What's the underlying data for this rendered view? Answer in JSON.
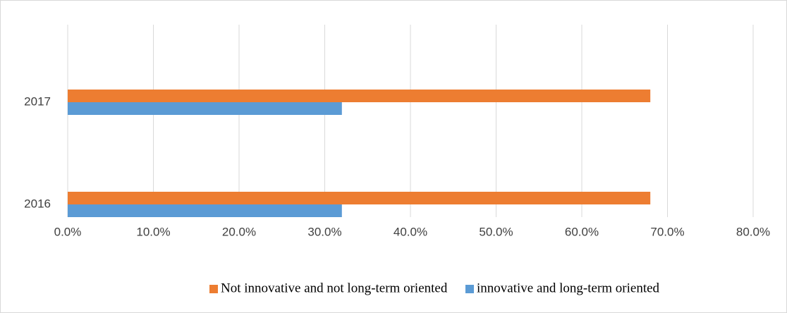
{
  "chart_data": {
    "type": "hbar",
    "categories": [
      "2016",
      "2017"
    ],
    "series": [
      {
        "name": "Not innovative and not long-term oriented",
        "color": "#ed7d31",
        "values": [
          68,
          68
        ]
      },
      {
        "name": "innovative and long-term oriented",
        "color": "#5b9bd5",
        "values": [
          32,
          32
        ]
      }
    ],
    "xlim": [
      0,
      80
    ],
    "xticks": [
      {
        "value": 0,
        "label": "0.0%"
      },
      {
        "value": 10,
        "label": "10.0%"
      },
      {
        "value": 20,
        "label": "20.0%"
      },
      {
        "value": 30,
        "label": "30.0%"
      },
      {
        "value": 40,
        "label": "40.0%"
      },
      {
        "value": 50,
        "label": "50.0%"
      },
      {
        "value": 60,
        "label": "60.0%"
      },
      {
        "value": 70,
        "label": "70.0%"
      },
      {
        "value": 80,
        "label": "80.0%"
      }
    ],
    "grid": true,
    "legend": "bottom"
  }
}
